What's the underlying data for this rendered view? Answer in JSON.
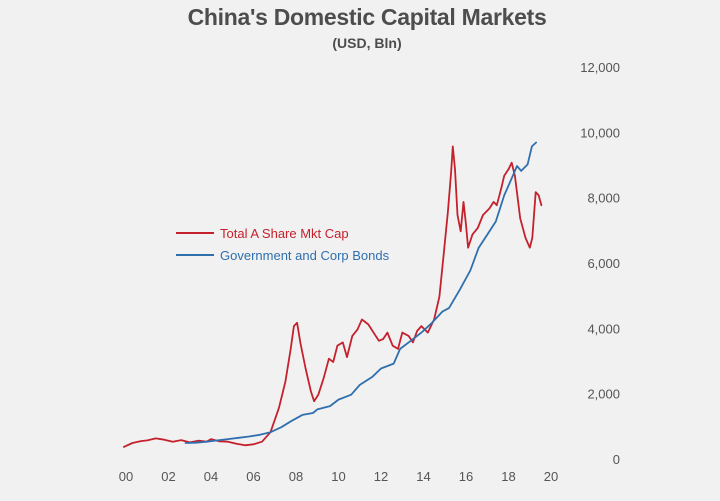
{
  "chart_data": {
    "type": "line",
    "title": "China's Domestic Capital Markets",
    "subtitle": "(USD, Bln)",
    "xlabel": "",
    "ylabel": "",
    "xlim": [
      2000,
      2020
    ],
    "ylim": [
      0,
      12000
    ],
    "x_ticks": [
      {
        "value": 2000,
        "label": "00"
      },
      {
        "value": 2002,
        "label": "02"
      },
      {
        "value": 2004,
        "label": "04"
      },
      {
        "value": 2006,
        "label": "06"
      },
      {
        "value": 2008,
        "label": "08"
      },
      {
        "value": 2010,
        "label": "10"
      },
      {
        "value": 2012,
        "label": "12"
      },
      {
        "value": 2014,
        "label": "14"
      },
      {
        "value": 2016,
        "label": "16"
      },
      {
        "value": 2018,
        "label": "18"
      },
      {
        "value": 2020,
        "label": "20"
      }
    ],
    "y_ticks": [
      {
        "value": 0,
        "label": "0"
      },
      {
        "value": 2000,
        "label": "2,000"
      },
      {
        "value": 4000,
        "label": "4,000"
      },
      {
        "value": 6000,
        "label": "6,000"
      },
      {
        "value": 8000,
        "label": "8,000"
      },
      {
        "value": 10000,
        "label": "10,000"
      },
      {
        "value": 12000,
        "label": "12,000"
      }
    ],
    "y_axis_side": "right",
    "grid": false,
    "legend_position": "middle-left",
    "series": [
      {
        "name": "Total A Share Mkt Cap",
        "color": "#c4212d",
        "points": [
          [
            1999.9,
            400
          ],
          [
            2000.3,
            520
          ],
          [
            2000.7,
            580
          ],
          [
            2001.0,
            600
          ],
          [
            2001.4,
            660
          ],
          [
            2001.8,
            620
          ],
          [
            2002.2,
            560
          ],
          [
            2002.6,
            610
          ],
          [
            2003.0,
            540
          ],
          [
            2003.4,
            590
          ],
          [
            2003.8,
            560
          ],
          [
            2004.0,
            640
          ],
          [
            2004.4,
            570
          ],
          [
            2004.8,
            560
          ],
          [
            2005.2,
            500
          ],
          [
            2005.6,
            450
          ],
          [
            2006.0,
            480
          ],
          [
            2006.4,
            560
          ],
          [
            2006.8,
            850
          ],
          [
            2007.2,
            1600
          ],
          [
            2007.5,
            2400
          ],
          [
            2007.75,
            3400
          ],
          [
            2007.9,
            4100
          ],
          [
            2008.05,
            4200
          ],
          [
            2008.2,
            3600
          ],
          [
            2008.45,
            2800
          ],
          [
            2008.7,
            2100
          ],
          [
            2008.85,
            1800
          ],
          [
            2009.05,
            2000
          ],
          [
            2009.3,
            2500
          ],
          [
            2009.55,
            3100
          ],
          [
            2009.75,
            3000
          ],
          [
            2009.95,
            3500
          ],
          [
            2010.2,
            3600
          ],
          [
            2010.4,
            3150
          ],
          [
            2010.65,
            3800
          ],
          [
            2010.9,
            4000
          ],
          [
            2011.1,
            4300
          ],
          [
            2011.4,
            4150
          ],
          [
            2011.7,
            3850
          ],
          [
            2011.9,
            3650
          ],
          [
            2012.1,
            3700
          ],
          [
            2012.3,
            3900
          ],
          [
            2012.55,
            3500
          ],
          [
            2012.8,
            3400
          ],
          [
            2013.0,
            3900
          ],
          [
            2013.3,
            3800
          ],
          [
            2013.5,
            3600
          ],
          [
            2013.7,
            3950
          ],
          [
            2013.9,
            4100
          ],
          [
            2014.2,
            3900
          ],
          [
            2014.5,
            4300
          ],
          [
            2014.75,
            5000
          ],
          [
            2014.95,
            6300
          ],
          [
            2015.15,
            7600
          ],
          [
            2015.3,
            8800
          ],
          [
            2015.38,
            9600
          ],
          [
            2015.48,
            8900
          ],
          [
            2015.6,
            7500
          ],
          [
            2015.75,
            7000
          ],
          [
            2015.88,
            7900
          ],
          [
            2016.0,
            7200
          ],
          [
            2016.1,
            6500
          ],
          [
            2016.3,
            6900
          ],
          [
            2016.55,
            7100
          ],
          [
            2016.8,
            7500
          ],
          [
            2017.1,
            7700
          ],
          [
            2017.3,
            7900
          ],
          [
            2017.45,
            7800
          ],
          [
            2017.65,
            8300
          ],
          [
            2017.8,
            8700
          ],
          [
            2018.0,
            8900
          ],
          [
            2018.15,
            9100
          ],
          [
            2018.3,
            8700
          ],
          [
            2018.55,
            7400
          ],
          [
            2018.8,
            6800
          ],
          [
            2019.0,
            6500
          ],
          [
            2019.12,
            6800
          ],
          [
            2019.28,
            8200
          ],
          [
            2019.42,
            8100
          ],
          [
            2019.55,
            7800
          ]
        ]
      },
      {
        "name": "Government and Corp Bonds",
        "color": "#2f6fae",
        "points": [
          [
            2002.8,
            520
          ],
          [
            2003.3,
            530
          ],
          [
            2003.8,
            560
          ],
          [
            2004.3,
            600
          ],
          [
            2004.8,
            640
          ],
          [
            2005.3,
            680
          ],
          [
            2005.8,
            720
          ],
          [
            2006.3,
            770
          ],
          [
            2006.8,
            850
          ],
          [
            2007.3,
            1000
          ],
          [
            2007.8,
            1200
          ],
          [
            2008.3,
            1380
          ],
          [
            2008.8,
            1440
          ],
          [
            2009.0,
            1550
          ],
          [
            2009.6,
            1650
          ],
          [
            2010.0,
            1850
          ],
          [
            2010.6,
            2000
          ],
          [
            2011.0,
            2300
          ],
          [
            2011.6,
            2550
          ],
          [
            2012.0,
            2800
          ],
          [
            2012.6,
            2950
          ],
          [
            2012.9,
            3400
          ],
          [
            2013.4,
            3650
          ],
          [
            2013.9,
            3900
          ],
          [
            2014.4,
            4200
          ],
          [
            2014.9,
            4550
          ],
          [
            2015.2,
            4650
          ],
          [
            2015.7,
            5200
          ],
          [
            2016.2,
            5800
          ],
          [
            2016.6,
            6500
          ],
          [
            2017.0,
            6900
          ],
          [
            2017.4,
            7300
          ],
          [
            2017.8,
            8100
          ],
          [
            2018.2,
            8700
          ],
          [
            2018.4,
            9000
          ],
          [
            2018.6,
            8850
          ],
          [
            2018.9,
            9050
          ],
          [
            2019.1,
            9600
          ],
          [
            2019.3,
            9720
          ]
        ]
      }
    ]
  }
}
